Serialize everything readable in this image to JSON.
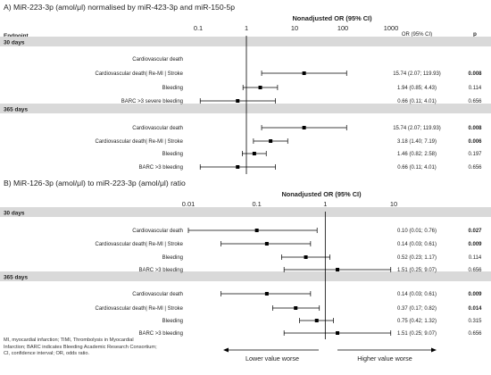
{
  "chart_data": [
    {
      "type": "forest",
      "title": "A) MiR-223-3p (amol/μl) normalised by miR-423-3p and miR-150-5p",
      "axis_title": "Nonadjusted OR (95% CI)",
      "scale": "log",
      "xlim": [
        0.1,
        1000
      ],
      "ticks": [
        "0.1",
        "1",
        "10",
        "100",
        "1000"
      ],
      "reference_line": 1,
      "col_endpoint": "Endpoint",
      "col_or": "OR (95% CI)",
      "col_p": "p",
      "groups": [
        {
          "label": "30 days",
          "rows": [
            {
              "label": "Cardiovascular death",
              "or": null,
              "lo": null,
              "hi": null,
              "or_text": "",
              "p": "",
              "sig": false
            },
            {
              "label": "Cardiovascular death| Re-MI | Stroke",
              "or": 15.74,
              "lo": 2.07,
              "hi": 119.93,
              "or_text": "15.74 (2.07; 119.93)",
              "p": "0.008",
              "sig": true
            },
            {
              "label": "Bleeding",
              "or": 1.94,
              "lo": 0.85,
              "hi": 4.43,
              "or_text": "1.94 (0.85; 4.43)",
              "p": "0.114",
              "sig": false
            },
            {
              "label": "BARC >3 severe bleeding",
              "or": 0.66,
              "lo": 0.11,
              "hi": 4.01,
              "or_text": "0.66 (0.11; 4.01)",
              "p": "0.656",
              "sig": false
            }
          ]
        },
        {
          "label": "365 days",
          "rows": [
            {
              "label": "Cardiovascular death",
              "or": 15.74,
              "lo": 2.07,
              "hi": 119.93,
              "or_text": "15.74 (2.07; 119.93)",
              "p": "0.008",
              "sig": true
            },
            {
              "label": "Cardiovascular death| Re-MI | Stroke",
              "or": 3.18,
              "lo": 1.4,
              "hi": 7.19,
              "or_text": "3.18 (1.40; 7.19)",
              "p": "0.006",
              "sig": true
            },
            {
              "label": "Bleeding",
              "or": 1.46,
              "lo": 0.82,
              "hi": 2.58,
              "or_text": "1.46 (0.82; 2.58)",
              "p": "0.197",
              "sig": false
            },
            {
              "label": "BARC >3 bleeding",
              "or": 0.66,
              "lo": 0.11,
              "hi": 4.01,
              "or_text": "0.66 (0.11; 4.01)",
              "p": "0.656",
              "sig": false
            }
          ]
        }
      ]
    },
    {
      "type": "forest",
      "title": "B) MiR-126-3p (amol/μl) to miR-223-3p (amol/μl) ratio",
      "axis_title": "Nonadjusted OR (95% CI)",
      "scale": "log",
      "xlim": [
        0.01,
        10
      ],
      "ticks": [
        "0.01",
        "0.1",
        "1",
        "10"
      ],
      "reference_line": 1,
      "col_endpoint": "Endpoint",
      "col_or": "OR (95% CI)",
      "col_p": "p",
      "groups": [
        {
          "label": "30 days",
          "rows": [
            {
              "label": "Cardiovascular death",
              "or": 0.1,
              "lo": 0.01,
              "hi": 0.76,
              "or_text": "0.10 (0.01; 0.76)",
              "p": "0.027",
              "sig": true
            },
            {
              "label": "Cardiovascular death| Re-MI | Stroke",
              "or": 0.14,
              "lo": 0.03,
              "hi": 0.61,
              "or_text": "0.14 (0.03; 0.61)",
              "p": "0.009",
              "sig": true
            },
            {
              "label": "Bleeding",
              "or": 0.52,
              "lo": 0.23,
              "hi": 1.17,
              "or_text": "0.52 (0.23; 1.17)",
              "p": "0.114",
              "sig": false
            },
            {
              "label": "BARC >3 bleeding",
              "or": 1.51,
              "lo": 0.25,
              "hi": 9.07,
              "or_text": "1.51 (0.25; 9.07)",
              "p": "0.656",
              "sig": false
            }
          ]
        },
        {
          "label": "365 days",
          "rows": [
            {
              "label": "Cardiovascular death",
              "or": 0.14,
              "lo": 0.03,
              "hi": 0.61,
              "or_text": "0.14 (0.03; 0.61)",
              "p": "0.009",
              "sig": true
            },
            {
              "label": "Cardiovascular death| Re-MI | Stroke",
              "or": 0.37,
              "lo": 0.17,
              "hi": 0.82,
              "or_text": "0.37 (0.17; 0.82)",
              "p": "0.014",
              "sig": true
            },
            {
              "label": "Bleeding",
              "or": 0.75,
              "lo": 0.42,
              "hi": 1.32,
              "or_text": "0.75 (0.42; 1.32)",
              "p": "0.315",
              "sig": false
            },
            {
              "label": "BARC >3 bleeding",
              "or": 1.51,
              "lo": 0.25,
              "hi": 9.07,
              "or_text": "1.51 (0.25; 9.07)",
              "p": "0.656",
              "sig": false
            }
          ]
        }
      ],
      "arrow_left_label": "Lower value worse",
      "arrow_right_label": "Higher value worse"
    }
  ],
  "footnote": {
    "line1": "MI, myocardial infarction; TIMI, Thrombolysis in Myocardial",
    "line2": "Infarction; BARC indicates Bleeding Academic Research Consortium;",
    "line3": "CI, confidence interval; OR, odds ratio."
  },
  "colors": {
    "section_band": "#d9d9d9",
    "marker": "#000000",
    "text": "#222222"
  }
}
